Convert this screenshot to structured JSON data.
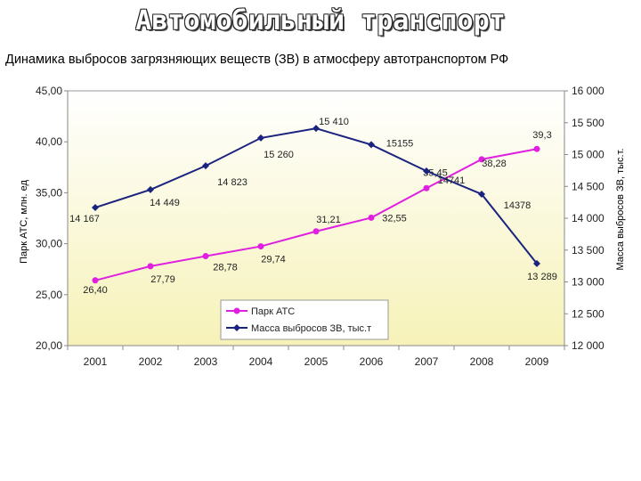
{
  "title": "Автомобильный транспорт",
  "chart_data": {
    "type": "line",
    "subtitle": "Динамика выбросов загрязняющих веществ (ЗВ) в атмосферу автотранспортом РФ",
    "categories": [
      "2001",
      "2002",
      "2003",
      "2004",
      "2005",
      "2006",
      "2007",
      "2008",
      "2009"
    ],
    "y_left": {
      "label": "Парк АТС, млн. ед",
      "range": [
        20,
        45
      ],
      "ticks": [
        "20,00",
        "25,00",
        "30,00",
        "35,00",
        "40,00",
        "45,00"
      ]
    },
    "y_right": {
      "label": "Масса выбросов ЗВ, тыс.т.",
      "range": [
        12000,
        16000
      ],
      "ticks": [
        "12 000",
        "12 500",
        "13 000",
        "13 500",
        "14 000",
        "14 500",
        "15 000",
        "15 500",
        "16 000"
      ]
    },
    "series": [
      {
        "name": "Парк АТС",
        "axis": "left",
        "color": "#e020e0",
        "values": [
          26.4,
          27.79,
          28.78,
          29.74,
          31.21,
          32.55,
          35.45,
          38.28,
          39.3
        ],
        "labels": [
          "26,40",
          "27,79",
          "28,78",
          "29,74",
          "31,21",
          "32,55",
          "35,45",
          "38,28",
          "39,3"
        ]
      },
      {
        "name": "Масса выбросов ЗВ, тыс.т",
        "axis": "right",
        "color": "#1a237e",
        "values": [
          14167,
          14449,
          14823,
          15260,
          15410,
          15155,
          14741,
          14378,
          13289
        ],
        "labels": [
          "14 167",
          "14 449",
          "14 823",
          "15 260",
          "15 410",
          "15155",
          "14741",
          "14378",
          "13 289"
        ]
      }
    ],
    "legend": "bottom-center",
    "grid": false
  }
}
